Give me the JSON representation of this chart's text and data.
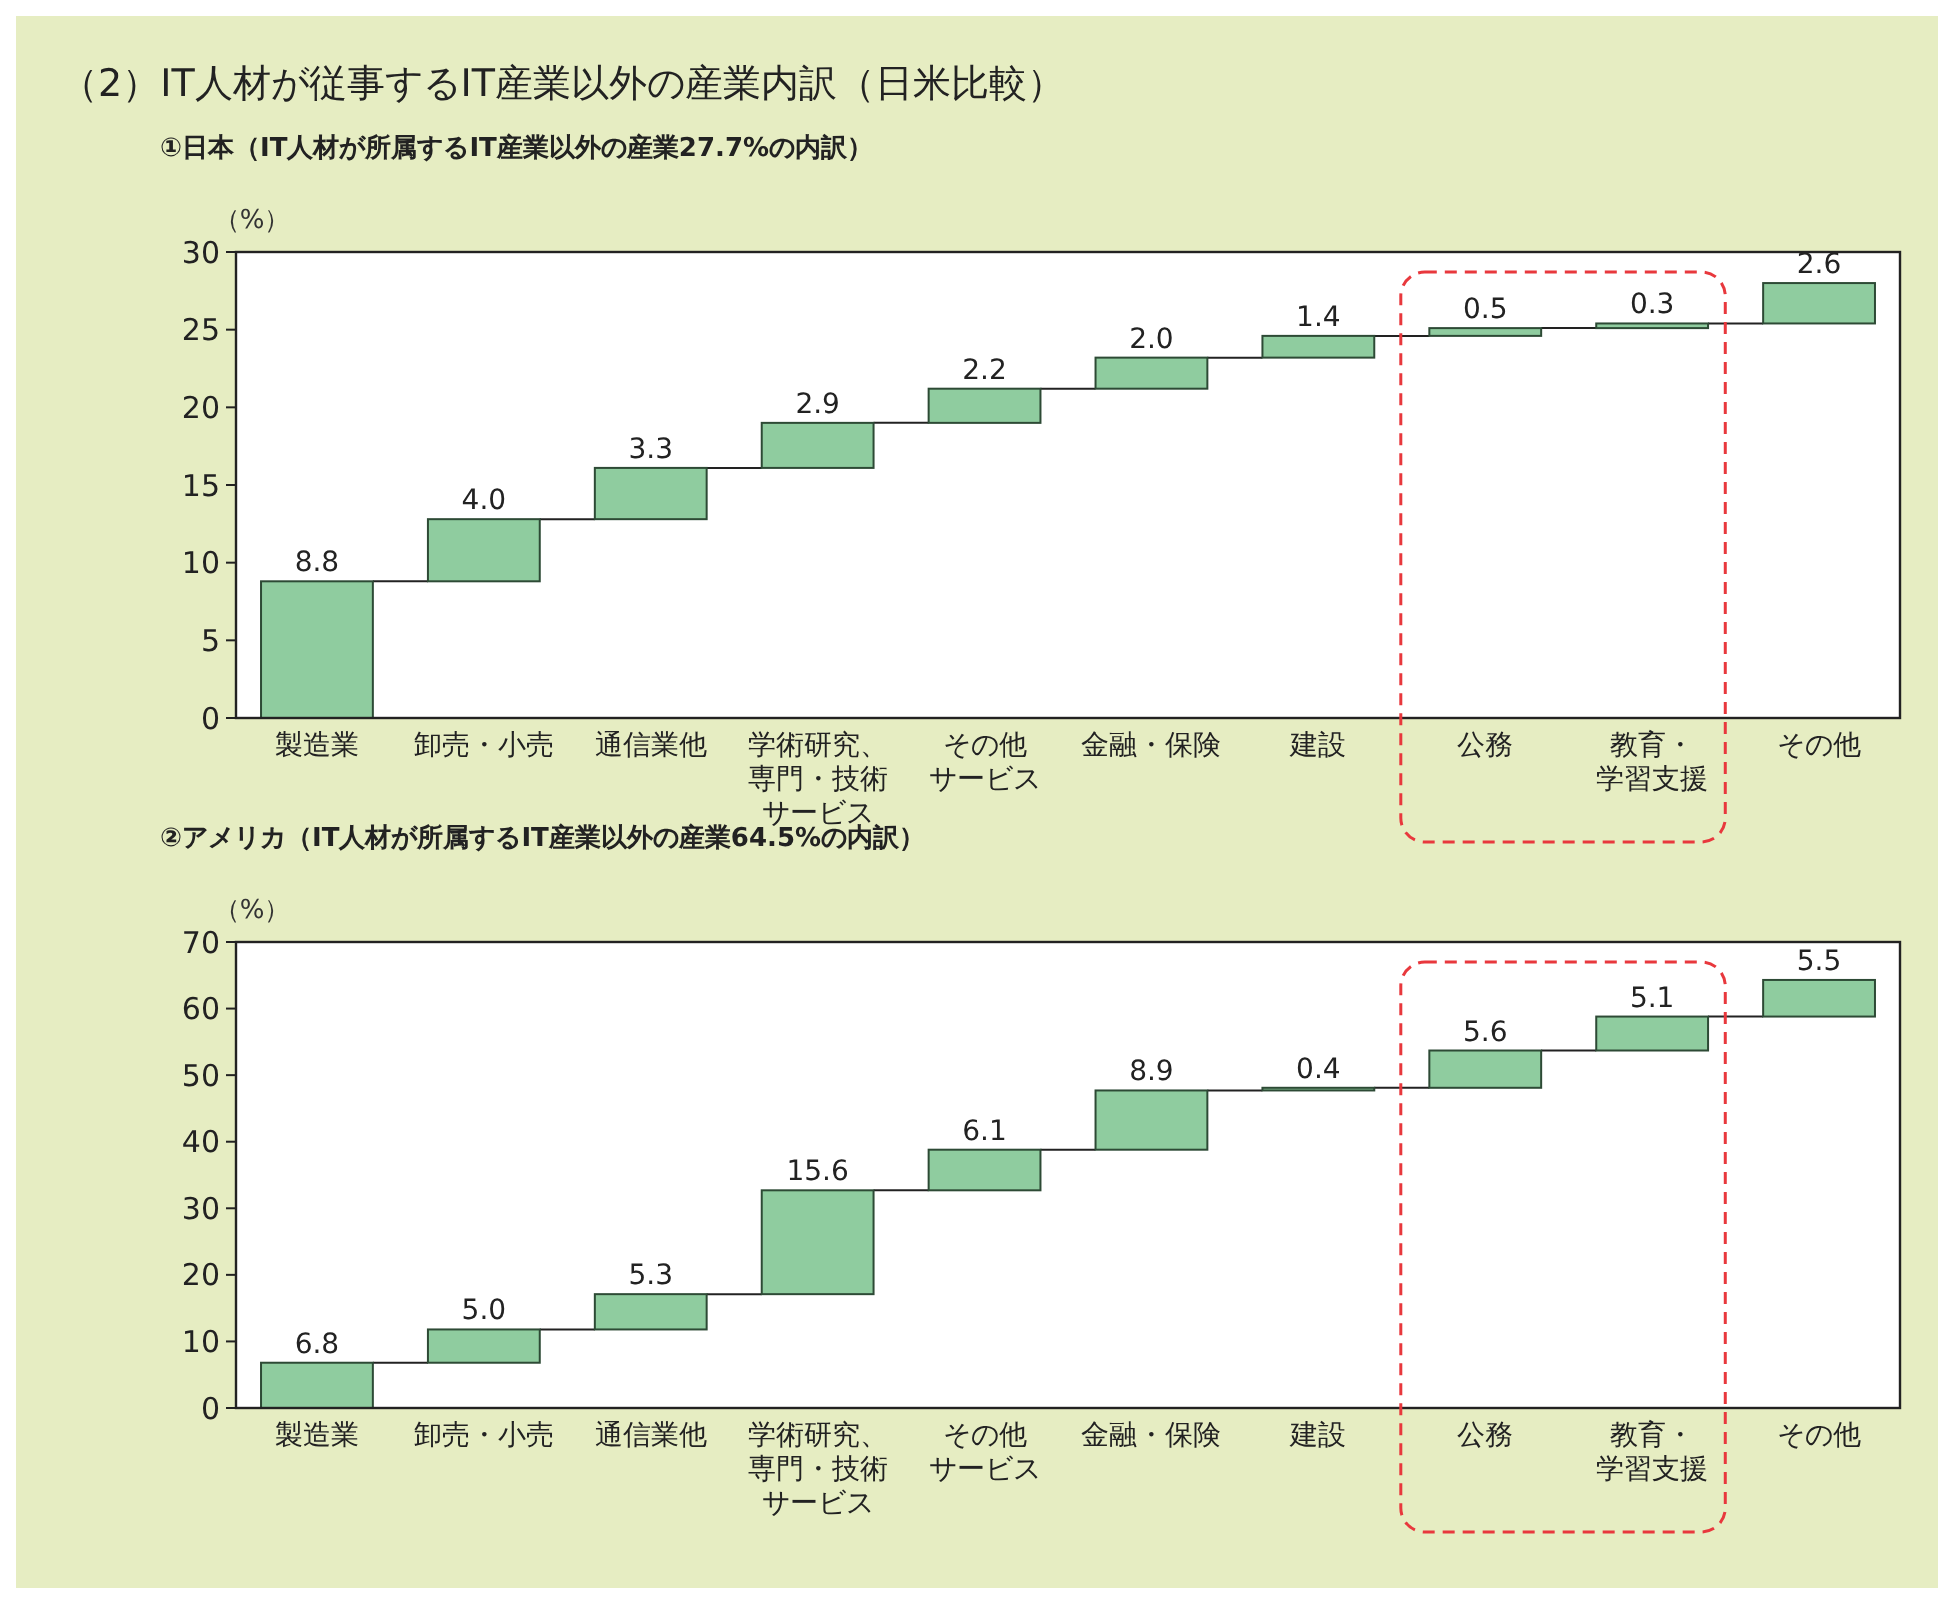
{
  "chart_data": [
    {
      "type": "bar",
      "title": "（2）IT人材が従事するIT産業以外の産業内訳（日米比較）",
      "subtitle": "①日本（IT人材が所属するIT産業以外の産業27.7%の内訳）",
      "ylabel": "（%）",
      "categories": [
        "製造業",
        "卸売・小売",
        "通信業他",
        "学術研究、専門・技術サービス",
        "その他サービス",
        "金融・保険",
        "建設",
        "公務",
        "教育・学習支援",
        "その他"
      ],
      "values": [
        8.8,
        4.0,
        3.3,
        2.9,
        2.2,
        2.0,
        1.4,
        0.5,
        0.3,
        2.6
      ],
      "value_labels": [
        "8.8",
        "4.0",
        "3.3",
        "2.9",
        "2.2",
        "2.0",
        "1.4",
        "0.5",
        "0.3",
        "2.6"
      ],
      "base": [
        0,
        8.8,
        12.8,
        16.1,
        19.0,
        21.2,
        23.2,
        24.6,
        25.1,
        25.4
      ],
      "color": "#8fcc9f",
      "ylim": [
        0,
        30
      ],
      "yticks": [
        0,
        5,
        10,
        15,
        20,
        25,
        30
      ]
    },
    {
      "type": "bar",
      "subtitle": "②アメリカ（IT人材が所属するIT産業以外の産業64.5%の内訳）",
      "ylabel": "（%）",
      "categories": [
        "製造業",
        "卸売・小売",
        "通信業他",
        "学術研究、専門・技術サービス",
        "その他サービス",
        "金融・保険",
        "建設",
        "公務",
        "教育・学習支援",
        "その他"
      ],
      "values": [
        6.8,
        5.0,
        5.3,
        15.6,
        6.1,
        8.9,
        0.4,
        5.6,
        5.1,
        5.5
      ],
      "value_labels": [
        "6.8",
        "5.0",
        "5.3",
        "15.6",
        "6.1",
        "8.9",
        "0.4",
        "5.6",
        "5.1",
        "5.5"
      ],
      "base": [
        0,
        6.8,
        11.8,
        17.1,
        32.7,
        38.8,
        47.7,
        48.1,
        53.7,
        58.8
      ],
      "color": "#8fcc9f",
      "ylim": [
        0,
        70
      ],
      "yticks": [
        0,
        10,
        20,
        30,
        40,
        50,
        60,
        70
      ]
    }
  ]
}
